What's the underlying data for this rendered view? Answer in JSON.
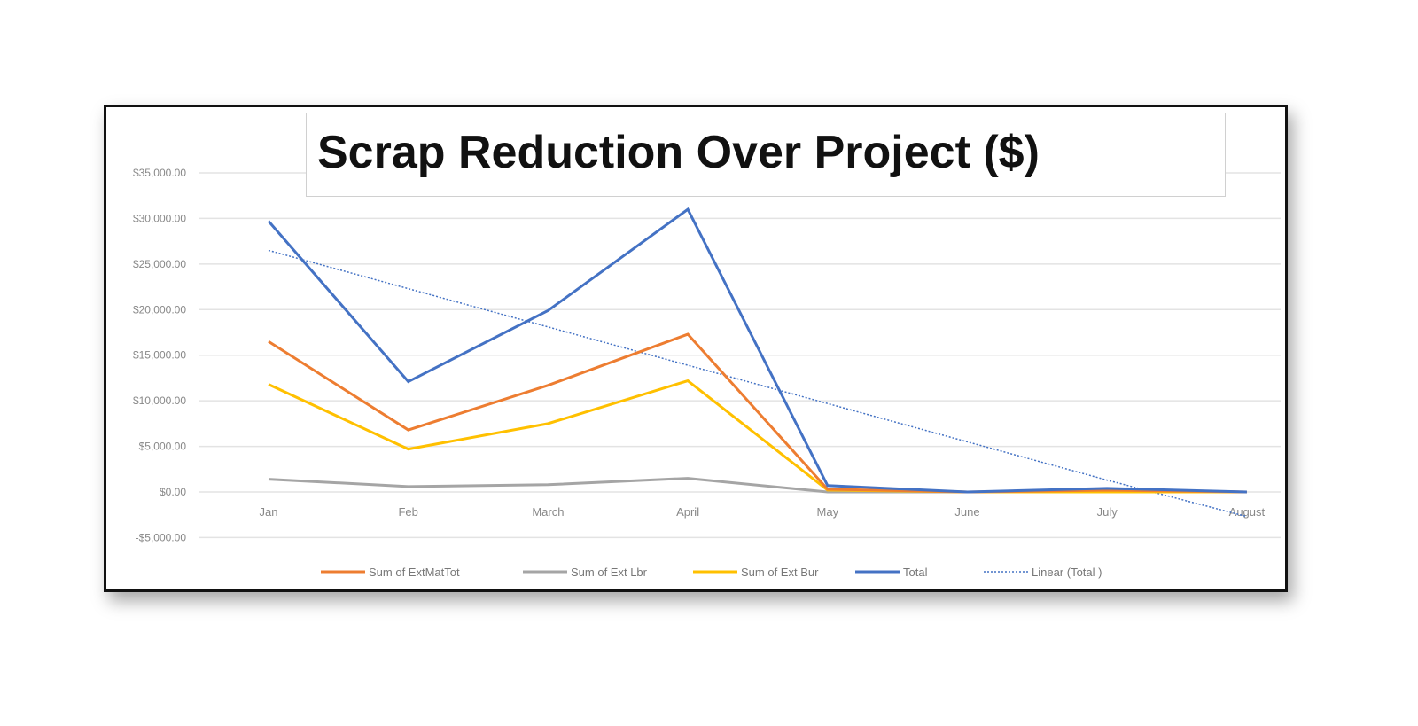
{
  "chart_data": {
    "type": "line",
    "title": "Scrap Reduction Over Project ($)",
    "categories": [
      "Jan",
      "Feb",
      "March",
      "April",
      "May",
      "June",
      "July",
      "August"
    ],
    "ylim": [
      -5000,
      35000
    ],
    "yticks": [
      35000,
      30000,
      25000,
      20000,
      15000,
      10000,
      5000,
      0,
      -5000
    ],
    "ytick_labels": [
      "$35,000.00",
      "$30,000.00",
      "$25,000.00",
      "$20,000.00",
      "$15,000.00",
      "$10,000.00",
      "$5,000.00",
      "$0.00",
      "-$5,000.00"
    ],
    "grid": true,
    "legend_position": "bottom",
    "series": [
      {
        "name": "Sum of ExtMatTot",
        "color": "#ED7D31",
        "style": "solid",
        "values": [
          16500,
          6800,
          11700,
          17300,
          300,
          0,
          200,
          0
        ]
      },
      {
        "name": "Sum of Ext Lbr",
        "color": "#A5A5A5",
        "style": "solid",
        "values": [
          1400,
          600,
          800,
          1500,
          0,
          0,
          0,
          0
        ]
      },
      {
        "name": "Sum of Ext Bur",
        "color": "#FFC000",
        "style": "solid",
        "values": [
          11800,
          4700,
          7500,
          12200,
          200,
          0,
          0,
          0
        ]
      },
      {
        "name": "Total",
        "color": "#4472C4",
        "style": "solid",
        "values": [
          29700,
          12100,
          19900,
          31000,
          700,
          0,
          400,
          0
        ]
      },
      {
        "name": "Linear (Total )",
        "color": "#4472C4",
        "style": "dotted",
        "values": [
          26500,
          22300,
          18100,
          13900,
          9700,
          5500,
          1300,
          -2700
        ]
      }
    ]
  }
}
